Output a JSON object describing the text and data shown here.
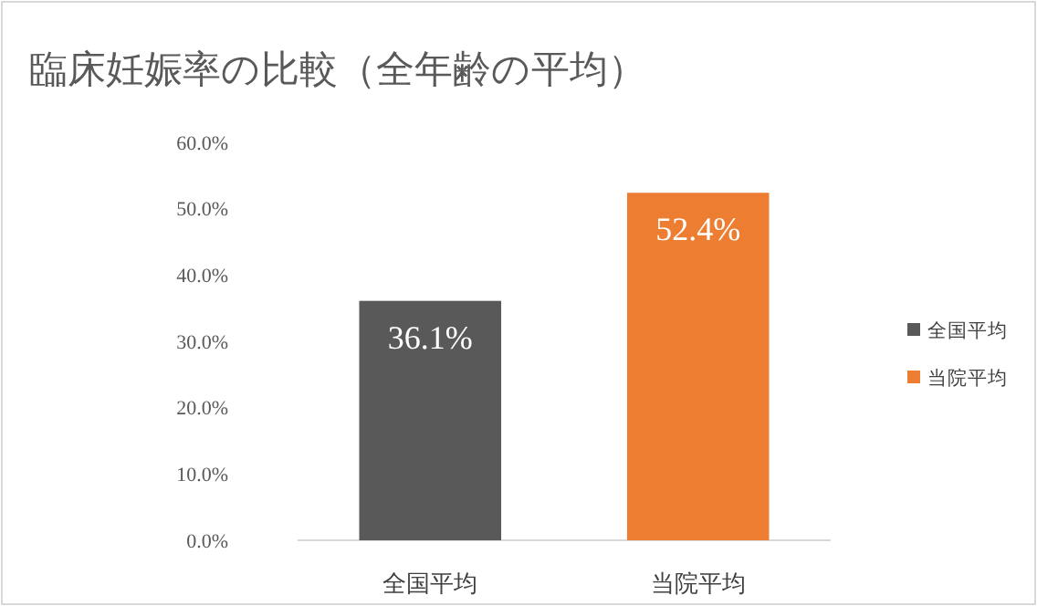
{
  "chart_data": {
    "type": "bar",
    "title": "臨床妊娠率の比較（全年齢の平均）",
    "categories": [
      "全国平均",
      "当院平均"
    ],
    "series": [
      {
        "name": "全国平均",
        "color": "#595959",
        "values": [
          36.1,
          null
        ],
        "value_labels": [
          "36.1%",
          null
        ]
      },
      {
        "name": "当院平均",
        "color": "#ed7d31",
        "values": [
          null,
          52.4
        ],
        "value_labels": [
          null,
          "52.4%"
        ]
      }
    ],
    "ylim": [
      0,
      60
    ],
    "yticks": [
      {
        "value": 0,
        "label": "0.0%"
      },
      {
        "value": 10,
        "label": "10.0%"
      },
      {
        "value": 20,
        "label": "20.0%"
      },
      {
        "value": 30,
        "label": "30.0%"
      },
      {
        "value": 40,
        "label": "40.0%"
      },
      {
        "value": 50,
        "label": "50.0%"
      },
      {
        "value": 60,
        "label": "60.0%"
      }
    ],
    "legend": "right"
  }
}
